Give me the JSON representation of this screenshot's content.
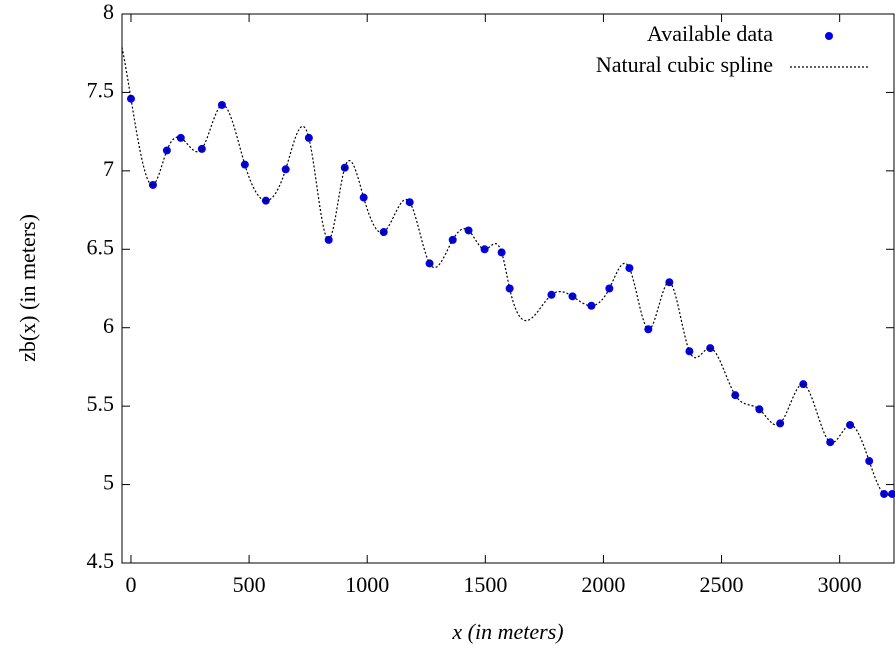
{
  "chart_data": {
    "type": "scatter",
    "xlabel": "x (in meters)",
    "ylabel": "zb(x) (in meters)",
    "x": [
      0,
      93,
      152,
      211,
      300,
      385,
      482,
      571,
      655,
      753,
      837,
      905,
      985,
      1070,
      1180,
      1264,
      1362,
      1429,
      1497,
      1569,
      1603,
      1780,
      1869,
      1949,
      2025,
      2110,
      2190,
      2279,
      2364,
      2452,
      2558,
      2660,
      2748,
      2846,
      2960,
      3044,
      3125,
      3188,
      3222
    ],
    "series": [
      {
        "name": "Available data",
        "color": "#0000ee",
        "marker": "dot",
        "values": [
          7.46,
          6.91,
          7.13,
          7.21,
          7.14,
          7.42,
          7.04,
          6.81,
          7.01,
          7.21,
          6.56,
          7.02,
          6.83,
          6.61,
          6.8,
          6.41,
          6.56,
          6.62,
          6.5,
          6.48,
          6.25,
          6.21,
          6.2,
          6.14,
          6.25,
          6.38,
          5.99,
          6.29,
          5.85,
          5.87,
          5.57,
          5.48,
          5.39,
          5.64,
          5.27,
          5.38,
          5.15,
          4.94,
          4.94
        ]
      },
      {
        "name": "Natural cubic spline",
        "color": "#000000",
        "marker": "spline",
        "values": [
          7.46,
          6.91,
          7.13,
          7.21,
          7.14,
          7.42,
          7.04,
          6.81,
          7.01,
          7.21,
          6.56,
          7.02,
          6.83,
          6.61,
          6.8,
          6.41,
          6.56,
          6.62,
          6.5,
          6.48,
          6.25,
          6.21,
          6.2,
          6.14,
          6.25,
          6.38,
          5.99,
          6.29,
          5.85,
          5.87,
          5.57,
          5.48,
          5.39,
          5.64,
          5.27,
          5.38,
          5.15,
          4.94,
          4.94
        ]
      }
    ],
    "xlim": [
      -38,
      3230
    ],
    "ylim": [
      4.5,
      8
    ],
    "xticks": [
      0,
      500,
      1000,
      1500,
      2000,
      2500,
      3000
    ],
    "yticks": [
      4.5,
      5,
      5.5,
      6,
      6.5,
      7,
      7.5,
      8
    ],
    "legend": "top-right"
  }
}
